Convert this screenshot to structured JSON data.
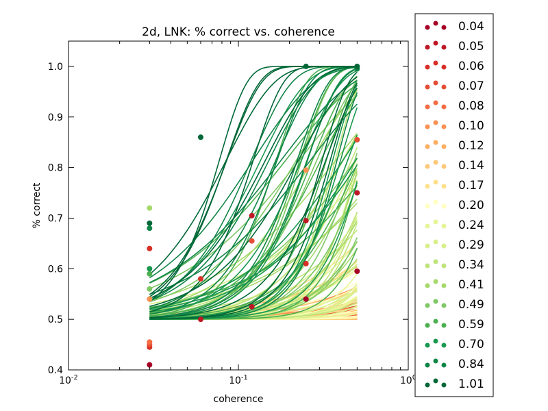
{
  "chart_data": {
    "type": "scatter",
    "title": "2d, LNK: % correct vs. coherence",
    "xlabel": "coherence",
    "ylabel": "% correct",
    "xscale": "log",
    "xlim": [
      0.01,
      1.0
    ],
    "ylim": [
      0.4,
      1.05
    ],
    "x_ticks": [
      {
        "value": 0.01,
        "base": "10",
        "exp": "-2"
      },
      {
        "value": 0.1,
        "base": "10",
        "exp": "-1"
      },
      {
        "value": 1.0,
        "base": "10",
        "exp": "0"
      }
    ],
    "y_ticks": [
      "0.4",
      "0.5",
      "0.6",
      "0.7",
      "0.8",
      "0.9",
      "1.0"
    ],
    "x_values": [
      0.03,
      0.06,
      0.12,
      0.25,
      0.5
    ],
    "legend": {
      "position": "outside-right",
      "entries": [
        {
          "label": "0.04",
          "color": "#a50026"
        },
        {
          "label": "0.05",
          "color": "#be1826"
        },
        {
          "label": "0.06",
          "color": "#d73027"
        },
        {
          "label": "0.07",
          "color": "#e54e35"
        },
        {
          "label": "0.08",
          "color": "#f46d43"
        },
        {
          "label": "0.10",
          "color": "#f99153"
        },
        {
          "label": "0.12",
          "color": "#fdae61"
        },
        {
          "label": "0.14",
          "color": "#fdc878"
        },
        {
          "label": "0.17",
          "color": "#fee08b"
        },
        {
          "label": "0.20",
          "color": "#ffffbf"
        },
        {
          "label": "0.24",
          "color": "#e6f598"
        },
        {
          "label": "0.29",
          "color": "#d9ef8b"
        },
        {
          "label": "0.34",
          "color": "#bfe47a"
        },
        {
          "label": "0.41",
          "color": "#a6d96a"
        },
        {
          "label": "0.49",
          "color": "#7fc866"
        },
        {
          "label": "0.59",
          "color": "#4cb050"
        },
        {
          "label": "0.70",
          "color": "#1a9850"
        },
        {
          "label": "0.84",
          "color": "#118547"
        },
        {
          "label": "1.01",
          "color": "#006837"
        }
      ]
    },
    "points": [
      {
        "x": 0.03,
        "y": 0.41,
        "series": "0.04"
      },
      {
        "x": 0.03,
        "y": 0.445,
        "series": "0.06"
      },
      {
        "x": 0.03,
        "y": 0.45,
        "series": "0.07"
      },
      {
        "x": 0.03,
        "y": 0.455,
        "series": "0.08"
      },
      {
        "x": 0.03,
        "y": 0.54,
        "series": "0.10"
      },
      {
        "x": 0.03,
        "y": 0.56,
        "series": "0.49"
      },
      {
        "x": 0.03,
        "y": 0.59,
        "series": "0.59"
      },
      {
        "x": 0.03,
        "y": 0.6,
        "series": "0.70"
      },
      {
        "x": 0.03,
        "y": 0.64,
        "series": "0.06"
      },
      {
        "x": 0.03,
        "y": 0.68,
        "series": "0.84"
      },
      {
        "x": 0.03,
        "y": 0.69,
        "series": "1.01"
      },
      {
        "x": 0.03,
        "y": 0.72,
        "series": "0.41"
      },
      {
        "x": 0.06,
        "y": 0.5,
        "series": "0.05"
      },
      {
        "x": 0.06,
        "y": 0.58,
        "series": "0.06"
      },
      {
        "x": 0.06,
        "y": 0.86,
        "series": "1.01"
      },
      {
        "x": 0.12,
        "y": 0.525,
        "series": "0.05"
      },
      {
        "x": 0.12,
        "y": 0.655,
        "series": "0.07"
      },
      {
        "x": 0.12,
        "y": 0.705,
        "series": "0.05"
      },
      {
        "x": 0.25,
        "y": 0.54,
        "series": "0.04"
      },
      {
        "x": 0.25,
        "y": 0.61,
        "series": "0.06"
      },
      {
        "x": 0.25,
        "y": 0.695,
        "series": "0.05"
      },
      {
        "x": 0.25,
        "y": 0.795,
        "series": "0.10"
      },
      {
        "x": 0.25,
        "y": 1.0,
        "series": "1.01"
      },
      {
        "x": 0.5,
        "y": 0.595,
        "series": "0.04"
      },
      {
        "x": 0.5,
        "y": 0.75,
        "series": "0.05"
      },
      {
        "x": 0.5,
        "y": 0.855,
        "series": "0.07"
      },
      {
        "x": 0.5,
        "y": 0.995,
        "series": "0.84"
      },
      {
        "x": 0.5,
        "y": 1.0,
        "series": "1.01"
      }
    ],
    "fit_curve_family": {
      "model": "y = 1 - 0.5*exp(-(x/alpha)^beta)",
      "x_range": [
        0.03,
        0.5
      ],
      "curves_per_series": 10
    }
  }
}
